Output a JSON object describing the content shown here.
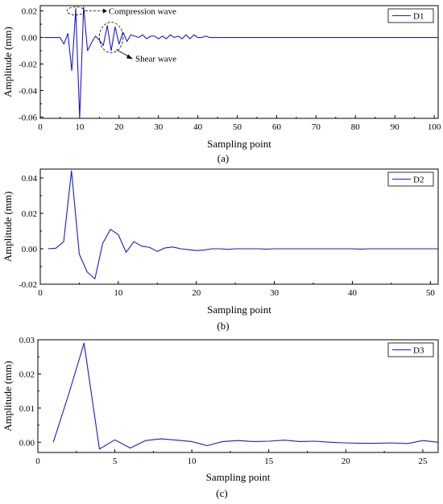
{
  "chart_data": [
    {
      "type": "line",
      "caption": "(a)",
      "xlabel": "Sampling point",
      "ylabel": "Amplitude (mm)",
      "xlim": [
        0,
        101
      ],
      "ylim": [
        -0.061,
        0.024
      ],
      "xticks": [
        0,
        10,
        20,
        30,
        40,
        50,
        60,
        70,
        80,
        90,
        100
      ],
      "yticks": [
        -0.06,
        -0.04,
        -0.02,
        0.0,
        0.02
      ],
      "ytick_labels": [
        "-0.06",
        "-0.04",
        "-0.02",
        "0.00",
        "0.02"
      ],
      "legend_position": "top-right",
      "color": "#1a1ad6",
      "series": [
        {
          "name": "D1",
          "x": [
            1,
            2,
            3,
            4,
            5,
            6,
            7,
            8,
            9,
            10,
            11,
            12,
            13,
            14,
            15,
            16,
            17,
            18,
            19,
            20,
            21,
            22,
            23,
            24,
            25,
            26,
            27,
            28,
            29,
            30,
            31,
            32,
            33,
            34,
            35,
            36,
            37,
            38,
            39,
            40,
            41,
            42,
            43,
            44,
            45,
            46,
            47,
            48,
            49,
            50,
            51,
            52,
            53,
            54,
            55,
            56,
            57,
            58,
            59,
            60,
            61,
            62,
            63,
            64,
            65,
            66,
            67,
            68,
            69,
            70,
            71,
            72,
            73,
            74,
            75,
            76,
            77,
            78,
            79,
            80,
            81,
            82,
            83,
            84,
            85,
            86,
            87,
            88,
            89,
            90,
            91,
            92,
            93,
            94,
            95,
            96,
            97,
            98,
            99,
            100,
            101
          ],
          "y": [
            0,
            0,
            0,
            0,
            0,
            -0.005,
            0.003,
            -0.025,
            0.021,
            -0.061,
            0.023,
            -0.01,
            -0.004,
            0.001,
            -0.002,
            -0.006,
            0.009,
            -0.01,
            0.008,
            -0.005,
            0.004,
            -0.003,
            0.002,
            0.001,
            0,
            0.002,
            -0.001,
            0.001,
            0.001,
            -0.001,
            0.001,
            -0.001,
            0.002,
            0,
            0.001,
            -0.001,
            0.002,
            -0.001,
            0.002,
            0,
            0,
            0.001,
            0,
            0,
            0,
            0,
            0,
            0,
            0,
            0,
            0,
            0,
            0,
            0,
            0,
            0,
            0,
            0,
            0,
            0,
            0,
            0,
            0,
            0,
            0,
            0,
            0,
            0,
            0,
            0,
            0,
            0,
            0,
            0,
            0,
            0,
            0,
            0,
            0,
            0,
            0,
            0,
            0,
            0,
            0,
            0,
            0,
            0,
            0,
            0,
            0,
            0,
            0,
            0,
            0,
            0,
            0,
            0,
            0,
            0,
            0
          ]
        }
      ],
      "annotations": [
        "Compression wave",
        "Shear wave"
      ]
    },
    {
      "type": "line",
      "caption": "(b)",
      "xlabel": "Sampling point",
      "ylabel": "Amplitude (mm)",
      "xlim": [
        0,
        51
      ],
      "ylim": [
        -0.02,
        0.045
      ],
      "xticks": [
        0,
        10,
        20,
        30,
        40,
        50
      ],
      "yticks": [
        -0.02,
        0.0,
        0.02,
        0.04
      ],
      "ytick_labels": [
        "-0.02",
        "0.00",
        "0.02",
        "0.04"
      ],
      "legend_position": "top-right",
      "color": "#1a1ad6",
      "series": [
        {
          "name": "D2",
          "x": [
            1,
            2,
            3,
            4,
            5,
            6,
            7,
            8,
            9,
            10,
            11,
            12,
            13,
            14,
            15,
            16,
            17,
            18,
            19,
            20,
            21,
            22,
            23,
            24,
            25,
            26,
            27,
            28,
            29,
            30,
            31,
            32,
            33,
            34,
            35,
            36,
            37,
            38,
            39,
            40,
            41,
            42,
            43,
            44,
            45,
            46,
            47,
            48,
            49,
            50,
            51
          ],
          "y": [
            0,
            0.0003,
            0.004,
            0.044,
            -0.003,
            -0.013,
            -0.017,
            0.003,
            0.011,
            0.008,
            -0.002,
            0.004,
            0.0015,
            0.0008,
            -0.0015,
            0.0005,
            0.001,
            0,
            -0.0005,
            -0.001,
            -0.0007,
            0,
            0,
            -0.0003,
            0,
            0,
            0,
            0,
            -0.0002,
            0,
            0,
            0,
            0,
            0,
            0,
            0,
            0,
            0,
            0,
            0,
            -0.0002,
            0,
            0,
            0,
            0,
            0,
            0,
            0,
            0,
            0,
            0
          ]
        }
      ],
      "annotations": []
    },
    {
      "type": "line",
      "caption": "(c)",
      "xlabel": "Sampling point",
      "ylabel": "Amplitude (mm)",
      "xlim": [
        0,
        26
      ],
      "ylim": [
        -0.003,
        0.03
      ],
      "xticks": [
        0,
        5,
        10,
        15,
        20,
        25
      ],
      "yticks": [
        0.0,
        0.01,
        0.02,
        0.03
      ],
      "ytick_labels": [
        "0.00",
        "0.01",
        "0.02",
        "0.03"
      ],
      "legend_position": "top-right",
      "color": "#1a1ad6",
      "series": [
        {
          "name": "D3",
          "x": [
            1,
            2,
            3,
            4,
            5,
            6,
            7,
            8,
            9,
            10,
            11,
            12,
            13,
            14,
            15,
            16,
            17,
            18,
            19,
            20,
            21,
            22,
            23,
            24,
            25,
            26
          ],
          "y": [
            0,
            0.014,
            0.029,
            -0.002,
            0.0007,
            -0.0017,
            0.0005,
            0.001,
            0.0006,
            0.0002,
            -0.001,
            0.0002,
            0.0005,
            0.0002,
            0.0003,
            0.0006,
            0.0002,
            0.0003,
            0,
            -0.0002,
            -0.0003,
            -0.0003,
            -0.0002,
            -0.0004,
            0.0005,
            0
          ]
        }
      ],
      "annotations": []
    }
  ]
}
